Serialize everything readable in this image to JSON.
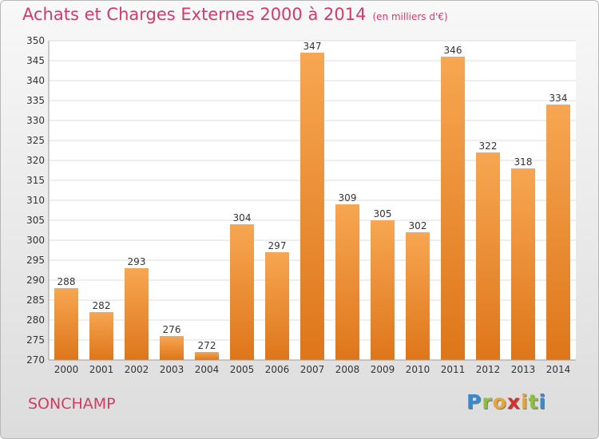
{
  "header": {
    "title": "Achats et Charges Externes 2000 à 2014",
    "unit": "(en milliers d'€)"
  },
  "footer": {
    "commune": "SONCHAMP",
    "logo_letters": [
      "P",
      "r",
      "o",
      "x",
      "i",
      "t",
      "i"
    ]
  },
  "colors": {
    "title": "#cf3c68",
    "bar_top": "#f7a652",
    "bar_bottom": "#de761a",
    "logo": [
      "#3b89c9",
      "#8cbf3f",
      "#e8a53a",
      "#d9302f",
      "#e8a53a",
      "#8cbf3f",
      "#3b89c9"
    ]
  },
  "chart_data": {
    "type": "bar",
    "categories": [
      "2000",
      "2001",
      "2002",
      "2003",
      "2004",
      "2005",
      "2006",
      "2007",
      "2008",
      "2009",
      "2010",
      "2011",
      "2012",
      "2013",
      "2014"
    ],
    "values": [
      288,
      282,
      293,
      276,
      272,
      304,
      297,
      347,
      309,
      305,
      302,
      346,
      322,
      318,
      334
    ],
    "value_labels": [
      "288",
      "282",
      "293",
      "276",
      "272",
      "304",
      "297",
      "347",
      "309",
      "305",
      "302",
      "346",
      "322",
      "318",
      "334"
    ],
    "yticks": [
      "270",
      "275",
      "280",
      "285",
      "290",
      "295",
      "300",
      "305",
      "310",
      "315",
      "320",
      "325",
      "330",
      "335",
      "340",
      "345",
      "350"
    ],
    "ylim": [
      270,
      350
    ],
    "grid": true,
    "xlabel": "",
    "ylabel": ""
  }
}
